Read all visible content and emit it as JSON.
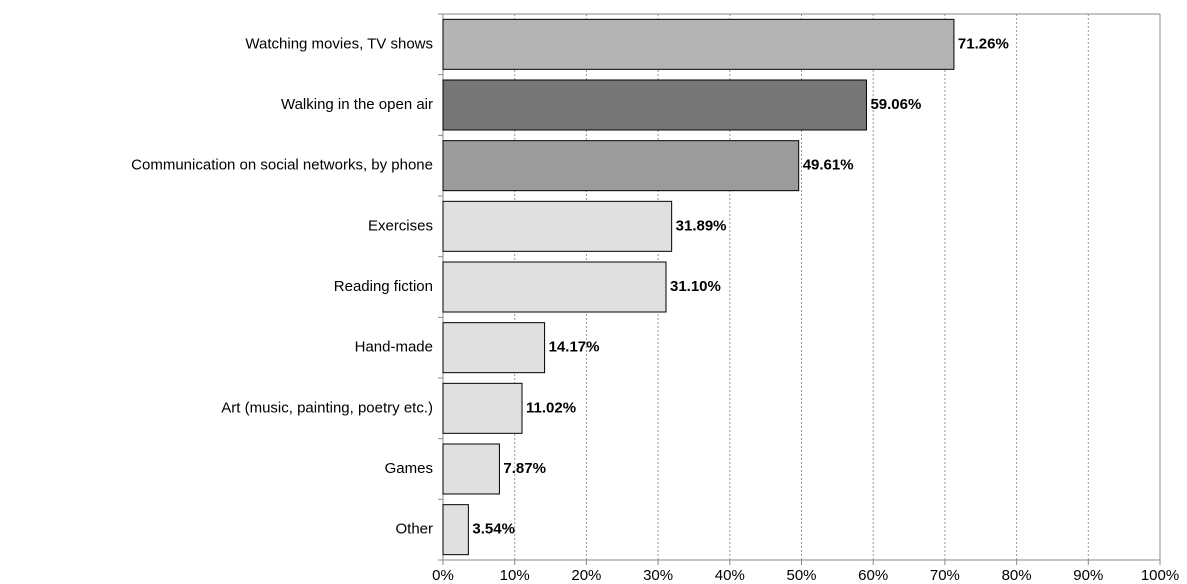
{
  "chart_data": {
    "type": "barh",
    "categories": [
      "Watching movies, TV shows",
      "Walking in the open air",
      "Communication on social networks, by phone",
      "Exercises",
      "Reading fiction",
      "Hand-made",
      "Art (music, painting, poetry etc.)",
      "Games",
      "Other"
    ],
    "values": [
      71.26,
      59.06,
      49.61,
      31.89,
      31.1,
      14.17,
      11.02,
      7.87,
      3.54
    ],
    "value_labels": [
      "71.26%",
      "59.06%",
      "49.61%",
      "31.89%",
      "31.10%",
      "14.17%",
      "11.02%",
      "7.87%",
      "3.54%"
    ],
    "colors": [
      "#b4b4b4",
      "#777777",
      "#9b9b9b",
      "#e0e0e0",
      "#e0e0e0",
      "#e0e0e0",
      "#e0e0e0",
      "#e0e0e0",
      "#e0e0e0"
    ],
    "xlim": [
      0,
      100
    ],
    "xticks": [
      {
        "value": 0,
        "label": "0%"
      },
      {
        "value": 10,
        "label": "10%"
      },
      {
        "value": 20,
        "label": "20%"
      },
      {
        "value": 30,
        "label": "30%"
      },
      {
        "value": 40,
        "label": "40%"
      },
      {
        "value": 50,
        "label": "50%"
      },
      {
        "value": 60,
        "label": "60%"
      },
      {
        "value": 70,
        "label": "70%"
      },
      {
        "value": 80,
        "label": "80%"
      },
      {
        "value": 90,
        "label": "90%"
      },
      {
        "value": 100,
        "label": "100%"
      }
    ],
    "grid": true
  }
}
